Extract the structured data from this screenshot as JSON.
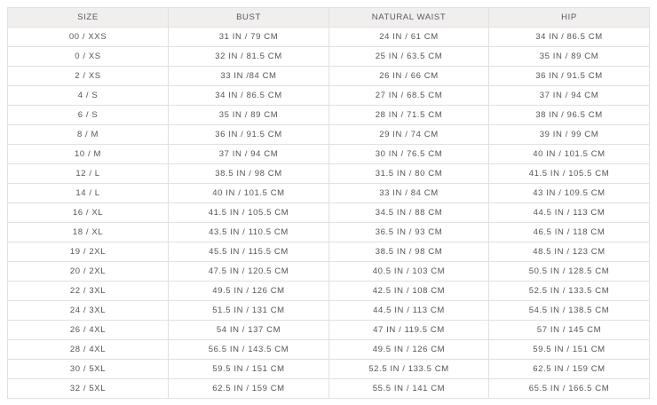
{
  "headers": [
    "SIZE",
    "BUST",
    "NATURAL WAIST",
    "HIP"
  ],
  "rows": [
    [
      "00 / XXS",
      "31 IN / 79 CM",
      "24 IN / 61 CM",
      "34 IN / 86.5 CM"
    ],
    [
      "0 / XS",
      "32 IN / 81.5 CM",
      "25 IN / 63.5 CM",
      "35 IN / 89 CM"
    ],
    [
      "2 / XS",
      "33 IN /84 CM",
      "26 IN / 66 CM",
      "36 IN / 91.5 CM"
    ],
    [
      "4 / S",
      "34 IN / 86.5 CM",
      "27 IN / 68.5 CM",
      "37 IN / 94 CM"
    ],
    [
      "6 / S",
      "35 IN / 89 CM",
      "28 IN / 71.5 CM",
      "38 IN / 96.5 CM"
    ],
    [
      "8 / M",
      "36 IN / 91.5 CM",
      "29 IN / 74 CM",
      "39 IN / 99 CM"
    ],
    [
      "10 / M",
      "37 IN / 94 CM",
      "30 IN / 76.5 CM",
      "40 IN / 101.5 CM"
    ],
    [
      "12 / L",
      "38.5 IN / 98 CM",
      "31.5 IN / 80 CM",
      "41.5 IN / 105.5 CM"
    ],
    [
      "14 / L",
      "40 IN / 101.5 CM",
      "33 IN / 84 CM",
      "43 IN / 109.5 CM"
    ],
    [
      "16 / XL",
      "41.5 IN / 105.5 CM",
      "34.5 IN / 88 CM",
      "44.5 IN / 113 CM"
    ],
    [
      "18 / XL",
      "43.5 IN / 110.5 CM",
      "36.5 IN / 93 CM",
      "46.5 IN / 118 CM"
    ],
    [
      "19 / 2XL",
      "45.5 IN / 115.5 CM",
      "38.5 IN / 98 CM",
      "48.5 IN / 123 CM"
    ],
    [
      "20 / 2XL",
      "47.5 IN / 120.5 CM",
      "40.5 IN / 103 CM",
      "50.5 IN / 128.5 CM"
    ],
    [
      "22 / 3XL",
      "49.5 IN / 126 CM",
      "42.5 IN / 108 CM",
      "52.5 IN / 133.5 CM"
    ],
    [
      "24 / 3XL",
      "51.5 IN / 131 CM",
      "44.5 IN / 113 CM",
      "54.5 IN / 138.5 CM"
    ],
    [
      "26 / 4XL",
      "54 IN / 137 CM",
      "47 IN / 119.5 CM",
      "57 IN / 145 CM"
    ],
    [
      "28 / 4XL",
      "56.5 IN / 143.5 CM",
      "49.5 IN / 126 CM",
      "59.5 IN / 151 CM"
    ],
    [
      "30 / 5XL",
      "59.5 IN / 151 CM",
      "52.5 IN / 133.5 CM",
      "62.5 IN / 159 CM"
    ],
    [
      "32 / 5XL",
      "62.5 IN / 159 CM",
      "55.5 IN / 141 CM",
      "65.5 IN / 166.5 CM"
    ]
  ]
}
